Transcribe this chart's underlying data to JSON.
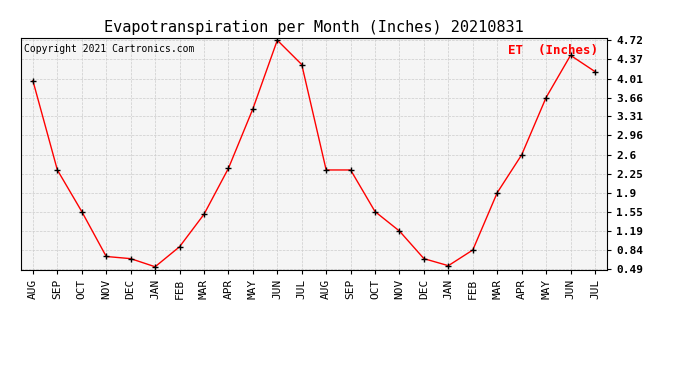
{
  "title": "Evapotranspiration per Month (Inches) 20210831",
  "copyright_text": "Copyright 2021 Cartronics.com",
  "legend_label": "ET  (Inches)",
  "months": [
    "AUG",
    "SEP",
    "OCT",
    "NOV",
    "DEC",
    "JAN",
    "FEB",
    "MAR",
    "APR",
    "MAY",
    "JUN",
    "JUL",
    "AUG",
    "SEP",
    "OCT",
    "NOV",
    "DEC",
    "JAN",
    "FEB",
    "MAR",
    "APR",
    "MAY",
    "JUN",
    "JUL"
  ],
  "values": [
    3.97,
    2.32,
    1.55,
    0.72,
    0.68,
    0.53,
    0.9,
    1.5,
    2.35,
    3.45,
    4.72,
    4.27,
    2.32,
    2.32,
    1.55,
    1.19,
    0.68,
    0.55,
    0.84,
    1.9,
    2.6,
    3.66,
    4.44,
    4.14
  ],
  "yticks": [
    0.49,
    0.84,
    1.19,
    1.55,
    1.9,
    2.25,
    2.6,
    2.96,
    3.31,
    3.66,
    4.01,
    4.37,
    4.72
  ],
  "ymin": 0.49,
  "ymax": 4.72,
  "line_color": "red",
  "marker": "+",
  "marker_color": "black",
  "grid_color": "#cccccc",
  "bg_color": "#f5f5f5",
  "title_fontsize": 11,
  "copyright_fontsize": 7,
  "legend_fontsize": 9,
  "tick_fontsize": 8
}
